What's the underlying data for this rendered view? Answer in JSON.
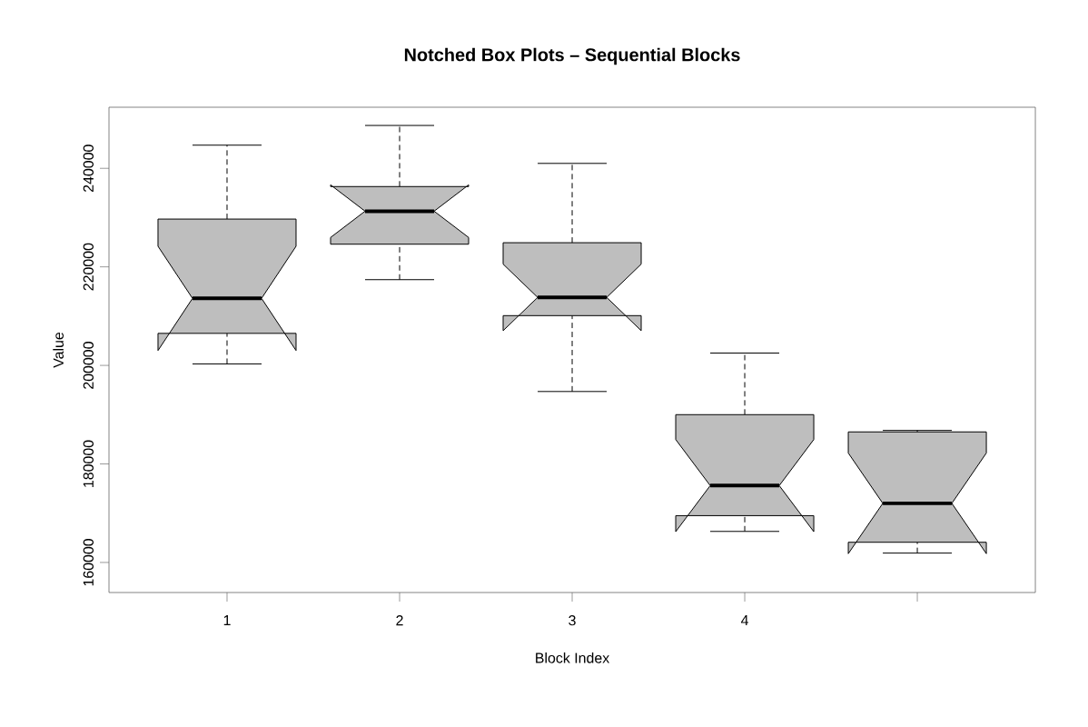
{
  "chart_data": {
    "type": "box",
    "title": "Notched Box Plots – Sequential Blocks",
    "xlabel": "Block Index",
    "ylabel": "Value",
    "categories": [
      "1",
      "2",
      "3",
      "4",
      null
    ],
    "boxes": [
      {
        "low": 200300,
        "q1": 206500,
        "median": 213600,
        "q3": 229700,
        "high": 244700
      },
      {
        "low": 217400,
        "q1": 224600,
        "median": 231300,
        "q3": 236300,
        "high": 248700
      },
      {
        "low": 194700,
        "q1": 210100,
        "median": 213800,
        "q3": 224900,
        "high": 241000
      },
      {
        "low": 166300,
        "q1": 169500,
        "median": 175600,
        "q3": 190000,
        "high": 202500
      },
      {
        "low": 161900,
        "q1": 164100,
        "median": 172000,
        "q3": 186500,
        "high": 186800
      }
    ],
    "color": "#bebebe",
    "ylim": [
      153900,
      252400
    ],
    "yticks": [
      160000,
      180000,
      200000,
      220000,
      240000
    ],
    "grid": false
  }
}
